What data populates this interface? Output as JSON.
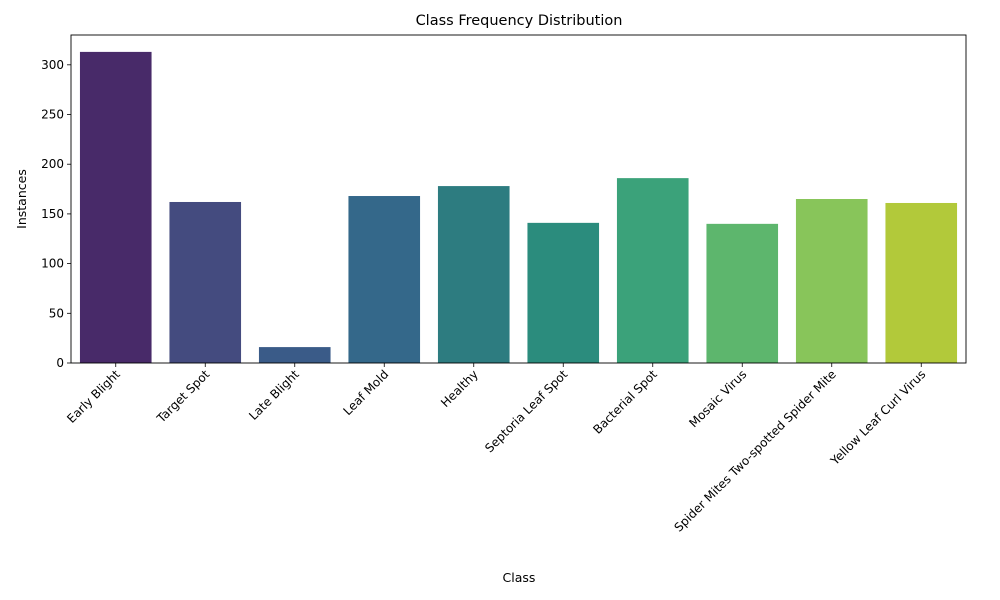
{
  "chart_data": {
    "type": "bar",
    "title": "Class Frequency Distribution",
    "xlabel": "Class",
    "ylabel": "Instances",
    "ylim": [
      0,
      330
    ],
    "yticks": [
      0,
      50,
      100,
      150,
      200,
      250,
      300
    ],
    "grid": false,
    "categories": [
      "Early Blight",
      "Target Spot",
      "Late Blight",
      "Leaf Mold",
      "Healthy",
      "Septoria Leaf Spot",
      "Bacterial Spot",
      "Mosaic Virus",
      "Spider Mites Two-spotted Spider Mite",
      "Yellow Leaf Curl Virus"
    ],
    "values": [
      313,
      162,
      16,
      168,
      178,
      141,
      186,
      140,
      165,
      161
    ],
    "colors": [
      "#482a69",
      "#444b7f",
      "#3a5b88",
      "#34688a",
      "#2d7c80",
      "#2b8c7d",
      "#3ba27a",
      "#5db66d",
      "#88c55a",
      "#b2c93a"
    ]
  }
}
